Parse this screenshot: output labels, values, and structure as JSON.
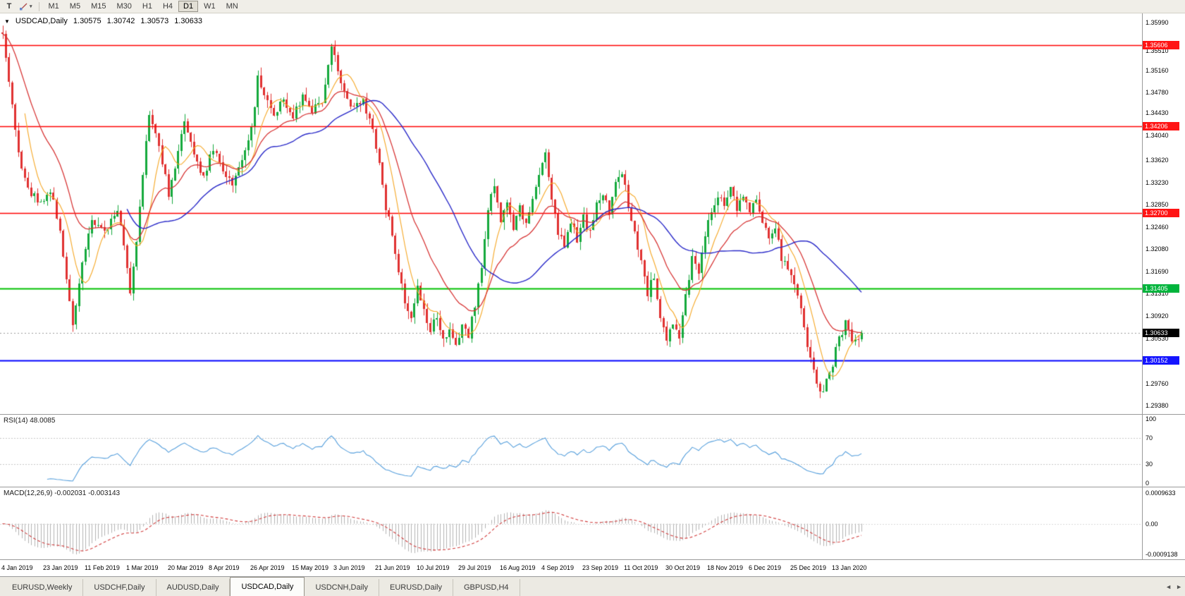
{
  "icons": {
    "chart_menu": "▼",
    "caret": "▾",
    "tab_scroll_left": "◄",
    "tab_scroll_right": "►"
  },
  "toolbar": {
    "text_tool_label": "T",
    "timeframes": [
      "M1",
      "M5",
      "M15",
      "M30",
      "H1",
      "H4",
      "D1",
      "W1",
      "MN"
    ],
    "active_timeframe": "D1"
  },
  "chart": {
    "symbol": "USDCAD,Daily",
    "ohlc": {
      "open": "1.30575",
      "high": "1.30742",
      "low": "1.30573",
      "close": "1.30633"
    }
  },
  "price_axis": {
    "ticks": [
      "1.35990",
      "1.35510",
      "1.35160",
      "1.34780",
      "1.34430",
      "1.34040",
      "1.33620",
      "1.33230",
      "1.32850",
      "1.32460",
      "1.32080",
      "1.31690",
      "1.31310",
      "1.30920",
      "1.30530",
      "1.29760",
      "1.29380"
    ],
    "level_badges": [
      {
        "value": "1.35606",
        "color": "#FF1414",
        "type": "resistance"
      },
      {
        "value": "1.34206",
        "color": "#FF1414",
        "type": "resistance"
      },
      {
        "value": "1.32700",
        "color": "#FF1414",
        "type": "resistance"
      },
      {
        "value": "1.31405",
        "color": "#00B43C",
        "type": "support"
      },
      {
        "value": "1.30152",
        "color": "#1414FF",
        "type": "support"
      }
    ],
    "current_price_badge": {
      "value": "1.30633",
      "color": "#000000"
    }
  },
  "rsi_panel": {
    "label": "RSI(14)",
    "value": "48.0085",
    "axis_ticks": [
      "100",
      "70",
      "30",
      "0"
    ],
    "levels": [
      70,
      30
    ]
  },
  "macd_panel": {
    "label": "MACD(12,26,9)",
    "main_value": "-0.002031",
    "signal_value": "-0.003143",
    "axis_ticks": [
      "0.0009633",
      "0.00",
      "-0.0009138"
    ]
  },
  "date_axis": [
    "4 Jan 2019",
    "23 Jan 2019",
    "11 Feb 2019",
    "1 Mar 2019",
    "20 Mar 2019",
    "8 Apr 2019",
    "26 Apr 2019",
    "15 May 2019",
    "3 Jun 2019",
    "21 Jun 2019",
    "10 Jul 2019",
    "29 Jul 2019",
    "16 Aug 2019",
    "4 Sep 2019",
    "23 Sep 2019",
    "11 Oct 2019",
    "30 Oct 2019",
    "18 Nov 2019",
    "6 Dec 2019",
    "25 Dec 2019",
    "13 Jan 2020"
  ],
  "tabs": [
    "EURUSD,Weekly",
    "USDCHF,Daily",
    "AUDUSD,Daily",
    "USDCAD,Daily",
    "USDCNH,Daily",
    "EURUSD,Daily",
    "GBPUSD,H4"
  ],
  "active_tab": "USDCAD,Daily",
  "chart_data": {
    "type": "candlestick",
    "symbol": "USDCAD",
    "timeframe": "D1",
    "num_candles": 270,
    "y_range": [
      1.2922,
      1.3615
    ],
    "last_ohlc": {
      "open": 1.30575,
      "high": 1.30742,
      "low": 1.30573,
      "close": 1.30633
    },
    "price_path": [
      [
        0,
        1.3585
      ],
      [
        2,
        1.3495
      ],
      [
        5,
        1.3375
      ],
      [
        8,
        1.331
      ],
      [
        12,
        1.3292
      ],
      [
        15,
        1.3306
      ],
      [
        18,
        1.3246
      ],
      [
        20,
        1.3152
      ],
      [
        22,
        1.3082
      ],
      [
        25,
        1.318
      ],
      [
        28,
        1.3256
      ],
      [
        32,
        1.324
      ],
      [
        36,
        1.3276
      ],
      [
        38,
        1.3216
      ],
      [
        40,
        1.3132
      ],
      [
        42,
        1.3226
      ],
      [
        44,
        1.333
      ],
      [
        46,
        1.3446
      ],
      [
        49,
        1.339
      ],
      [
        52,
        1.3302
      ],
      [
        54,
        1.3342
      ],
      [
        57,
        1.3436
      ],
      [
        60,
        1.3372
      ],
      [
        63,
        1.3332
      ],
      [
        66,
        1.338
      ],
      [
        69,
        1.3342
      ],
      [
        72,
        1.3322
      ],
      [
        75,
        1.336
      ],
      [
        78,
        1.342
      ],
      [
        80,
        1.35
      ],
      [
        82,
        1.3476
      ],
      [
        85,
        1.3442
      ],
      [
        88,
        1.347
      ],
      [
        91,
        1.3432
      ],
      [
        94,
        1.3476
      ],
      [
        97,
        1.3442
      ],
      [
        100,
        1.3466
      ],
      [
        103,
        1.3558
      ],
      [
        105,
        1.3516
      ],
      [
        107,
        1.3482
      ],
      [
        110,
        1.3446
      ],
      [
        113,
        1.3466
      ],
      [
        116,
        1.3416
      ],
      [
        118,
        1.3352
      ],
      [
        120,
        1.3282
      ],
      [
        122,
        1.3232
      ],
      [
        124,
        1.3172
      ],
      [
        126,
        1.3122
      ],
      [
        128,
        1.3092
      ],
      [
        130,
        1.3142
      ],
      [
        132,
        1.3102
      ],
      [
        134,
        1.3072
      ],
      [
        136,
        1.3092
      ],
      [
        138,
        1.3046
      ],
      [
        140,
        1.3062
      ],
      [
        142,
        1.3036
      ],
      [
        144,
        1.3082
      ],
      [
        146,
        1.3062
      ],
      [
        148,
        1.3112
      ],
      [
        150,
        1.3182
      ],
      [
        152,
        1.3272
      ],
      [
        154,
        1.3322
      ],
      [
        156,
        1.3256
      ],
      [
        158,
        1.3292
      ],
      [
        160,
        1.3236
      ],
      [
        162,
        1.3282
      ],
      [
        164,
        1.3246
      ],
      [
        166,
        1.3292
      ],
      [
        168,
        1.3332
      ],
      [
        170,
        1.3376
      ],
      [
        172,
        1.3292
      ],
      [
        174,
        1.3236
      ],
      [
        176,
        1.3212
      ],
      [
        178,
        1.3252
      ],
      [
        180,
        1.3226
      ],
      [
        182,
        1.3262
      ],
      [
        184,
        1.3236
      ],
      [
        186,
        1.3282
      ],
      [
        188,
        1.3306
      ],
      [
        190,
        1.3272
      ],
      [
        192,
        1.333
      ],
      [
        194,
        1.3342
      ],
      [
        196,
        1.3282
      ],
      [
        198,
        1.3232
      ],
      [
        200,
        1.3182
      ],
      [
        202,
        1.3132
      ],
      [
        204,
        1.3162
      ],
      [
        206,
        1.3092
      ],
      [
        208,
        1.3052
      ],
      [
        210,
        1.3082
      ],
      [
        212,
        1.3062
      ],
      [
        214,
        1.3132
      ],
      [
        216,
        1.3192
      ],
      [
        218,
        1.3162
      ],
      [
        220,
        1.3232
      ],
      [
        222,
        1.3272
      ],
      [
        224,
        1.3302
      ],
      [
        226,
        1.3282
      ],
      [
        228,
        1.3312
      ],
      [
        230,
        1.3282
      ],
      [
        232,
        1.3302
      ],
      [
        234,
        1.3272
      ],
      [
        236,
        1.3292
      ],
      [
        238,
        1.3252
      ],
      [
        240,
        1.3222
      ],
      [
        242,
        1.3242
      ],
      [
        244,
        1.3192
      ],
      [
        246,
        1.3172
      ],
      [
        248,
        1.3142
      ],
      [
        250,
        1.3102
      ],
      [
        252,
        1.3042
      ],
      [
        254,
        1.2992
      ],
      [
        256,
        1.2962
      ],
      [
        258,
        1.2976
      ],
      [
        260,
        1.3012
      ],
      [
        262,
        1.3052
      ],
      [
        264,
        1.3082
      ],
      [
        266,
        1.3052
      ],
      [
        268,
        1.3056
      ],
      [
        269,
        1.30633
      ]
    ],
    "horizontal_lines": [
      {
        "price": 1.35606,
        "color": "#FF0000",
        "width": 1.5
      },
      {
        "price": 1.34206,
        "color": "#FF0000",
        "width": 1.5
      },
      {
        "price": 1.327,
        "color": "#FF0000",
        "width": 1.5
      },
      {
        "price": 1.31405,
        "color": "#00C000",
        "width": 2
      },
      {
        "price": 1.30152,
        "color": "#0000FF",
        "width": 2
      }
    ],
    "moving_averages": [
      {
        "period": 8,
        "method": "sma",
        "color": "#F5A623"
      },
      {
        "period": 20,
        "method": "ema",
        "color": "#D63030"
      },
      {
        "period": 40,
        "method": "sma",
        "color": "#2828C8"
      }
    ],
    "indicators": [
      {
        "name": "RSI",
        "period": 14,
        "current": 48.0085
      },
      {
        "name": "MACD",
        "fast": 12,
        "slow": 26,
        "signal": 9,
        "current_main": -0.002031,
        "current_signal": -0.003143
      }
    ],
    "colors": {
      "bull": "#14A93C",
      "bear": "#E03131",
      "background": "#FFFFFF",
      "rsi": "#569FDC",
      "macd_hist": "#B3B3B3",
      "macd_signal": "#D03A3A",
      "current_price_line": "#9C9C9C"
    }
  }
}
